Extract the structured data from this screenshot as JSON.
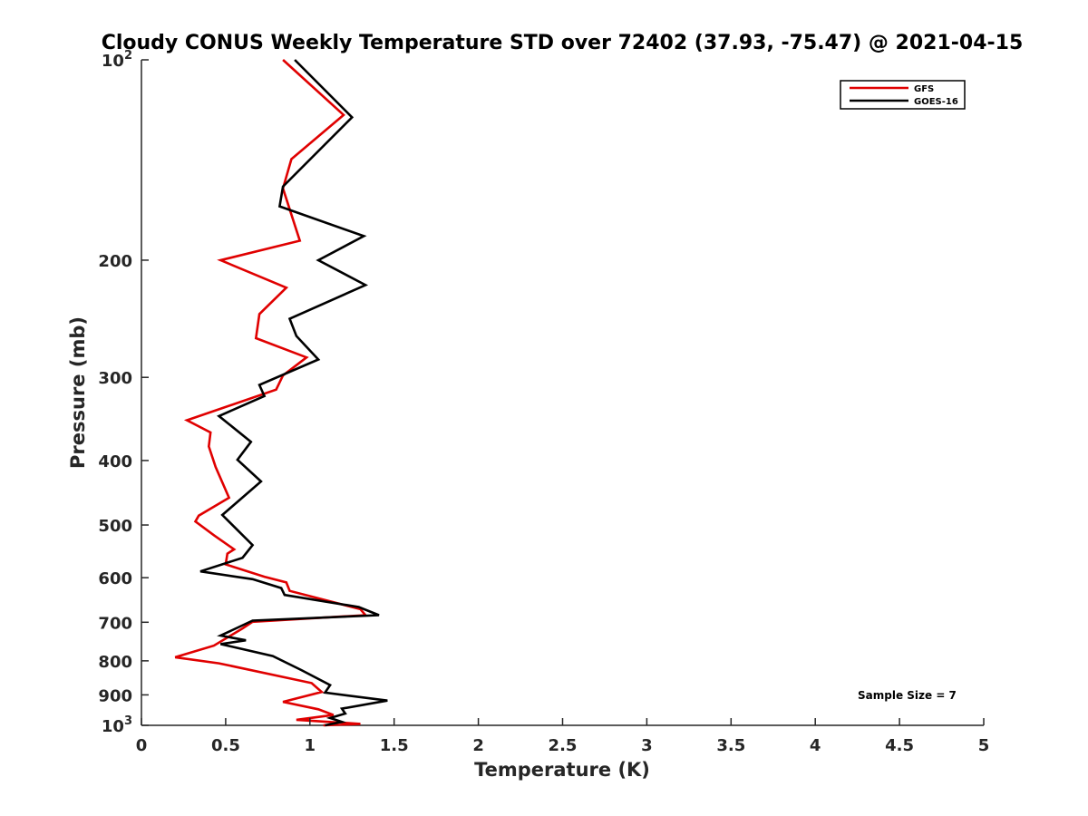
{
  "chart_data": {
    "type": "line",
    "title": "Cloudy CONUS Weekly Temperature STD over 72402 (37.93, -75.47) @ 2021-04-15",
    "xlabel": "Temperature (K)",
    "ylabel": "Pressure (mb)",
    "xlim": [
      0,
      5
    ],
    "ylim": [
      100,
      1000
    ],
    "yscale": "log",
    "y_reversed": true,
    "grid": false,
    "legend_position": "top-right",
    "x_ticks": [
      "0",
      "0.5",
      "1",
      "1.5",
      "2",
      "2.5",
      "3",
      "3.5",
      "4",
      "4.5",
      "5"
    ],
    "y_ticks": [
      {
        "value": 100,
        "label": "10",
        "exp": "2"
      },
      {
        "value": 200,
        "label": "200",
        "exp": ""
      },
      {
        "value": 300,
        "label": "300",
        "exp": ""
      },
      {
        "value": 400,
        "label": "400",
        "exp": ""
      },
      {
        "value": 500,
        "label": "500",
        "exp": ""
      },
      {
        "value": 600,
        "label": "600",
        "exp": ""
      },
      {
        "value": 700,
        "label": "700",
        "exp": ""
      },
      {
        "value": 800,
        "label": "800",
        "exp": ""
      },
      {
        "value": 900,
        "label": "900",
        "exp": ""
      },
      {
        "value": 1000,
        "label": "10",
        "exp": "3"
      }
    ],
    "annotation": "Sample Size = 7",
    "series": [
      {
        "name": "GFS",
        "color": "#e00000",
        "points": [
          [
            0.84,
            100
          ],
          [
            1.2,
            121
          ],
          [
            0.89,
            141
          ],
          [
            0.84,
            156
          ],
          [
            0.94,
            187
          ],
          [
            0.47,
            200
          ],
          [
            0.86,
            220
          ],
          [
            0.7,
            241
          ],
          [
            0.68,
            262
          ],
          [
            0.98,
            280
          ],
          [
            0.84,
            298
          ],
          [
            0.8,
            313
          ],
          [
            0.27,
            348
          ],
          [
            0.41,
            363
          ],
          [
            0.4,
            381
          ],
          [
            0.44,
            409
          ],
          [
            0.52,
            455
          ],
          [
            0.34,
            484
          ],
          [
            0.32,
            494
          ],
          [
            0.43,
            518
          ],
          [
            0.55,
            544
          ],
          [
            0.51,
            552
          ],
          [
            0.5,
            573
          ],
          [
            0.73,
            598
          ],
          [
            0.86,
            610
          ],
          [
            0.88,
            628
          ],
          [
            1.3,
            669
          ],
          [
            1.33,
            683
          ],
          [
            0.66,
            699
          ],
          [
            0.6,
            715
          ],
          [
            0.43,
            759
          ],
          [
            0.2,
            790
          ],
          [
            0.46,
            807
          ],
          [
            1.01,
            864
          ],
          [
            1.07,
            891
          ],
          [
            0.84,
            922
          ],
          [
            1.05,
            946
          ],
          [
            1.14,
            965
          ],
          [
            0.92,
            981
          ],
          [
            1.3,
            995
          ],
          [
            1.08,
            1000
          ]
        ]
      },
      {
        "name": "GOES-16",
        "color": "#000000",
        "points": [
          [
            0.91,
            100
          ],
          [
            1.25,
            122
          ],
          [
            0.84,
            155
          ],
          [
            0.82,
            166
          ],
          [
            1.32,
            184
          ],
          [
            1.05,
            200
          ],
          [
            1.33,
            218
          ],
          [
            0.88,
            245
          ],
          [
            0.92,
            260
          ],
          [
            1.05,
            282
          ],
          [
            0.7,
            308
          ],
          [
            0.73,
            320
          ],
          [
            0.46,
            343
          ],
          [
            0.65,
            375
          ],
          [
            0.57,
            399
          ],
          [
            0.71,
            430
          ],
          [
            0.48,
            483
          ],
          [
            0.66,
            536
          ],
          [
            0.6,
            560
          ],
          [
            0.35,
            587
          ],
          [
            0.66,
            603
          ],
          [
            0.83,
            622
          ],
          [
            0.85,
            637
          ],
          [
            1.29,
            664
          ],
          [
            1.41,
            683
          ],
          [
            0.66,
            696
          ],
          [
            0.47,
            733
          ],
          [
            0.62,
            745
          ],
          [
            0.47,
            755
          ],
          [
            0.78,
            787
          ],
          [
            0.95,
            826
          ],
          [
            1.12,
            870
          ],
          [
            1.09,
            893
          ],
          [
            1.46,
            918
          ],
          [
            1.19,
            944
          ],
          [
            1.21,
            960
          ],
          [
            1.12,
            975
          ],
          [
            1.19,
            988
          ],
          [
            1.09,
            1000
          ]
        ]
      }
    ]
  }
}
